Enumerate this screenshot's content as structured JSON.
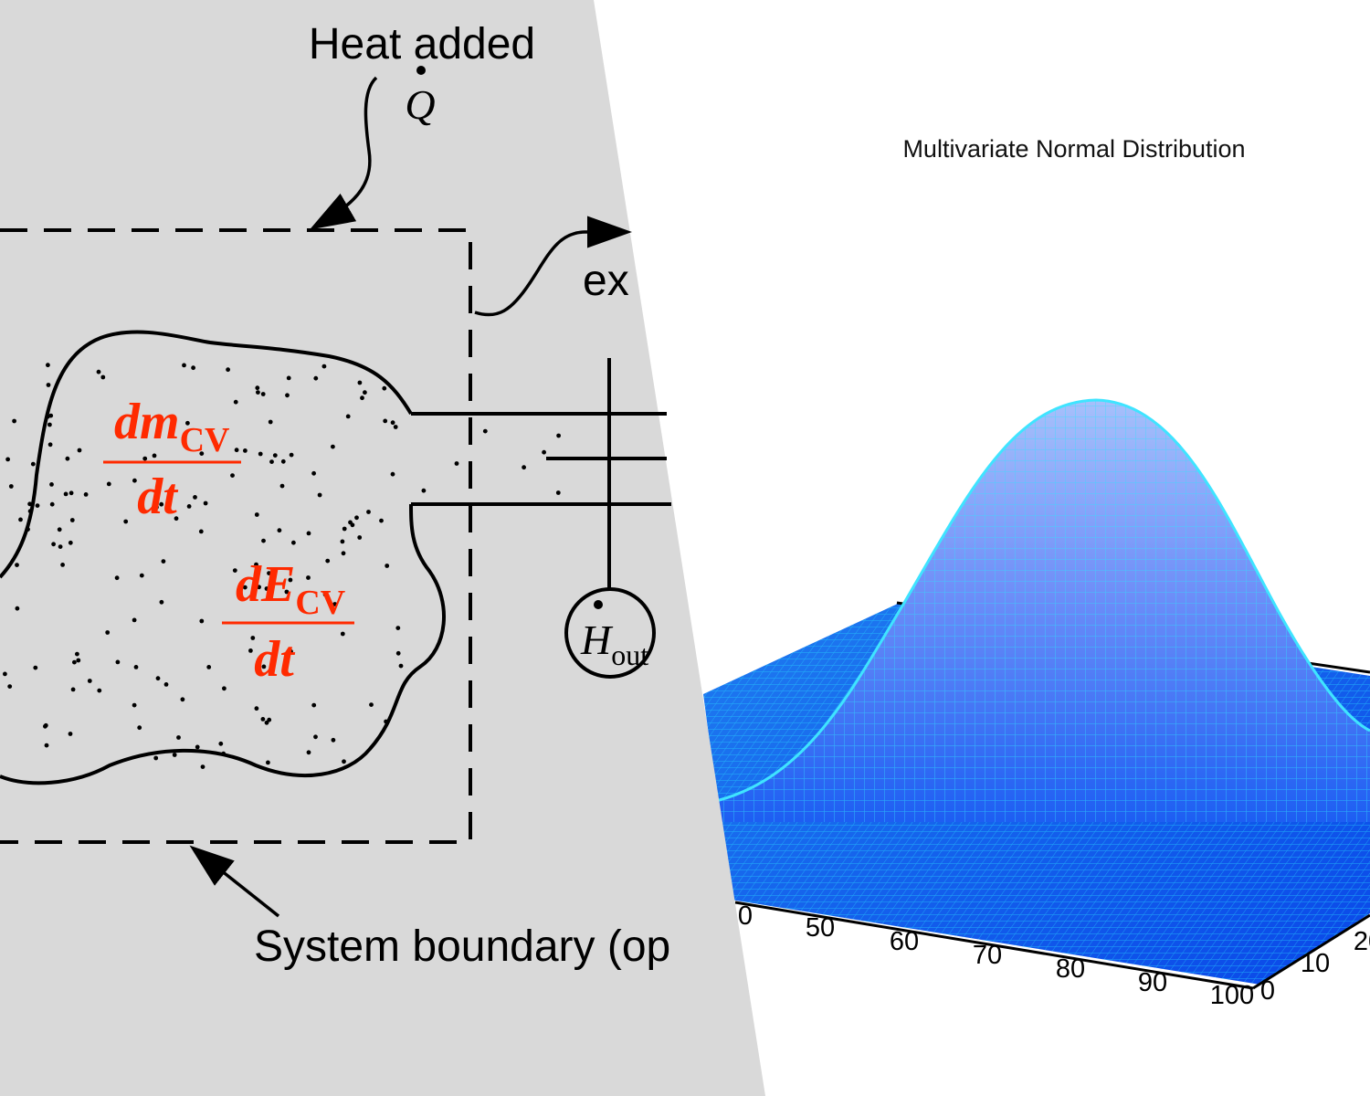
{
  "left_panel": {
    "heat_label": "Heat added",
    "heat_symbol": "Q",
    "work_label": "ex",
    "boundary_label": "System boundary (op",
    "mass_rate": {
      "numerator": "dm",
      "subscript": "CV",
      "denominator": "dt"
    },
    "energy_rate": {
      "numerator": "dE",
      "subscript": "CV",
      "denominator": "dt"
    },
    "enthalpy_out": {
      "symbol": "H",
      "subscript": "out"
    },
    "colors": {
      "background": "#d9d9d9",
      "formula": "#ff2a00",
      "ink": "#000000"
    }
  },
  "right_panel": {
    "title": "Multivariate Normal Distribution",
    "x_ticks": [
      "0",
      "50",
      "60",
      "70",
      "80",
      "90",
      "100"
    ],
    "y_ticks": [
      "0",
      "10",
      "20"
    ],
    "colors": {
      "surface_top": "#9fb8f8",
      "surface_base": "#0a50f0",
      "mesh": "#00e5ff"
    }
  }
}
